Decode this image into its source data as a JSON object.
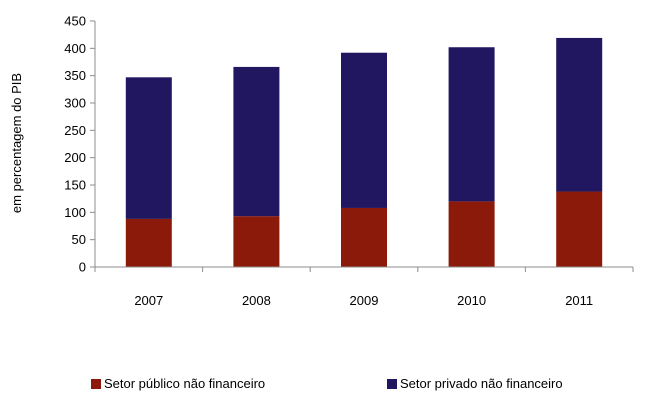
{
  "chart_data": {
    "type": "bar",
    "stacked": true,
    "title": "",
    "xlabel": "",
    "ylabel": "em percentagem do PIB",
    "ylim": [
      0,
      450
    ],
    "yticks": [
      "0",
      "50",
      "100",
      "150",
      "200",
      "250",
      "300",
      "350",
      "400",
      "450"
    ],
    "categories": [
      "2007",
      "2008",
      "2009",
      "2010",
      "2011"
    ],
    "series": [
      {
        "name": "Setor público não financeiro",
        "color": "#8b1a0a",
        "values": [
          88,
          93,
          108,
          120,
          138
        ]
      },
      {
        "name": "Setor privado não financeiro",
        "color": "#211660",
        "values": [
          259,
          273,
          284,
          282,
          281
        ]
      }
    ],
    "grid": false,
    "legend_position": "bottom"
  }
}
